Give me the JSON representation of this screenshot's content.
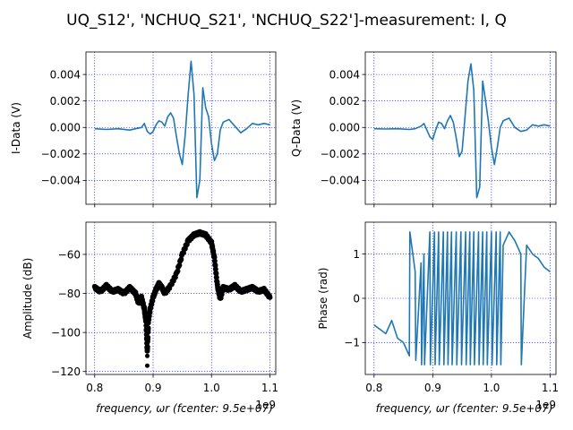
{
  "chart_data": [
    {
      "id": "i-data",
      "type": "line",
      "title": "",
      "xlabel": "",
      "ylabel": "I-Data (V)",
      "xlim": [
        0.785,
        1.11
      ],
      "ylim": [
        -0.0058,
        0.0057
      ],
      "xticks": [
        0.8,
        0.9,
        1.0,
        1.1
      ],
      "yticks": [
        -0.004,
        -0.002,
        0.0,
        0.002,
        0.004
      ],
      "ytick_labels": [
        "−0.004",
        "−0.002",
        "0.000",
        "0.002",
        "0.004"
      ],
      "series": [
        {
          "name": "I",
          "color": "#1f77b4",
          "x": [
            0.8,
            0.82,
            0.84,
            0.86,
            0.87,
            0.88,
            0.885,
            0.89,
            0.895,
            0.9,
            0.905,
            0.91,
            0.915,
            0.92,
            0.925,
            0.93,
            0.935,
            0.94,
            0.945,
            0.95,
            0.955,
            0.96,
            0.965,
            0.97,
            0.975,
            0.98,
            0.985,
            0.99,
            0.995,
            1.0,
            1.005,
            1.01,
            1.015,
            1.02,
            1.03,
            1.04,
            1.05,
            1.06,
            1.07,
            1.08,
            1.09,
            1.1
          ],
          "values": [
            -0.0001,
            -0.00015,
            -0.0001,
            -0.0002,
            -0.0001,
            0.0,
            0.0003,
            -0.0003,
            -0.0005,
            -0.0003,
            0.0002,
            0.0005,
            0.0004,
            0.0001,
            0.0008,
            0.0011,
            0.0007,
            -0.0007,
            -0.002,
            -0.0028,
            -0.0005,
            0.0025,
            0.005,
            0.0025,
            -0.0053,
            -0.004,
            0.003,
            0.0015,
            0.0008,
            -0.0012,
            -0.0025,
            -0.002,
            -0.0002,
            0.0004,
            0.0006,
            0.0001,
            -0.0004,
            -0.0001,
            0.0003,
            0.0002,
            0.0003,
            0.0002
          ]
        }
      ]
    },
    {
      "id": "q-data",
      "type": "line",
      "title": "",
      "xlabel": "",
      "ylabel": "Q-Data (V)",
      "xlim": [
        0.785,
        1.11
      ],
      "ylim": [
        -0.0058,
        0.0057
      ],
      "xticks": [
        0.8,
        0.9,
        1.0,
        1.1
      ],
      "yticks": [
        -0.004,
        -0.002,
        0.0,
        0.002,
        0.004
      ],
      "ytick_labels": [
        "−0.004",
        "−0.002",
        "0.000",
        "0.002",
        "0.004"
      ],
      "series": [
        {
          "name": "Q",
          "color": "#1f77b4",
          "x": [
            0.8,
            0.82,
            0.84,
            0.86,
            0.87,
            0.88,
            0.885,
            0.89,
            0.895,
            0.9,
            0.905,
            0.91,
            0.915,
            0.92,
            0.925,
            0.93,
            0.935,
            0.94,
            0.945,
            0.95,
            0.955,
            0.96,
            0.965,
            0.97,
            0.975,
            0.98,
            0.985,
            0.99,
            0.995,
            1.0,
            1.005,
            1.01,
            1.015,
            1.02,
            1.03,
            1.04,
            1.05,
            1.06,
            1.07,
            1.08,
            1.09,
            1.1
          ],
          "values": [
            -0.0001,
            -0.00012,
            -0.0001,
            -0.00015,
            -0.0001,
            0.0001,
            0.0003,
            -0.0002,
            -0.0007,
            -0.0009,
            -0.0002,
            0.0004,
            0.0003,
            -0.0001,
            0.0005,
            0.0009,
            0.0004,
            -0.0008,
            -0.0022,
            -0.0018,
            0.0008,
            0.0035,
            0.0048,
            0.0028,
            -0.0053,
            -0.0045,
            0.0035,
            0.002,
            0.0004,
            -0.0015,
            -0.0028,
            -0.0015,
            0.0,
            0.0005,
            0.0007,
            0.0,
            -0.0003,
            -0.0002,
            0.0002,
            0.0001,
            0.0002,
            0.0001
          ]
        }
      ]
    },
    {
      "id": "amplitude",
      "type": "scatter",
      "title": "",
      "xlabel": "frequency, ωr (fcenter: 9.5e+07)",
      "ylabel": "Amplitude (dB)",
      "xlim": [
        0.785,
        1.11
      ],
      "ylim": [
        -121.5,
        -43.5
      ],
      "xticks": [
        0.8,
        0.9,
        1.0,
        1.1
      ],
      "xtick_labels": [
        "0.8",
        "0.9",
        "1.0",
        "1.1"
      ],
      "yticks": [
        -120,
        -100,
        -80,
        -60
      ],
      "ytick_labels": [
        "−120",
        "−100",
        "−80",
        "−60"
      ],
      "offset_label": "1e9",
      "series": [
        {
          "name": "Amplitude",
          "color": "#000000",
          "x": [
            0.8,
            0.81,
            0.82,
            0.83,
            0.84,
            0.85,
            0.86,
            0.87,
            0.875,
            0.88,
            0.885,
            0.888,
            0.89,
            0.892,
            0.895,
            0.9,
            0.905,
            0.91,
            0.915,
            0.92,
            0.93,
            0.94,
            0.95,
            0.96,
            0.97,
            0.98,
            0.99,
            1.0,
            1.005,
            1.01,
            1.015,
            1.02,
            1.03,
            1.04,
            1.05,
            1.06,
            1.07,
            1.08,
            1.09,
            1.1
          ],
          "values": [
            -77,
            -79,
            -76,
            -79,
            -78,
            -80,
            -77,
            -80,
            -85,
            -82,
            -88,
            -95,
            -110,
            -94,
            -88,
            -82,
            -78,
            -75,
            -77,
            -80,
            -76,
            -70,
            -60,
            -53,
            -50,
            -49,
            -50,
            -54,
            -62,
            -76,
            -83,
            -77,
            -78,
            -76,
            -79,
            -78,
            -77,
            -79,
            -78,
            -82
          ]
        }
      ]
    },
    {
      "id": "phase",
      "type": "line",
      "title": "",
      "xlabel": "frequency, ωr (fcenter: 9.5e+07)",
      "ylabel": "Phase (rad)",
      "xlim": [
        0.785,
        1.11
      ],
      "ylim": [
        -1.72,
        1.72
      ],
      "xticks": [
        0.8,
        0.9,
        1.0,
        1.1
      ],
      "xtick_labels": [
        "0.8",
        "0.9",
        "1.0",
        "1.1"
      ],
      "yticks": [
        -1,
        0,
        1
      ],
      "ytick_labels": [
        "−1",
        "0",
        "1"
      ],
      "offset_label": "1e9",
      "series": [
        {
          "name": "Phase",
          "color": "#1f77b4",
          "x": [
            0.8,
            0.81,
            0.82,
            0.83,
            0.84,
            0.85,
            0.86,
            0.861,
            0.87,
            0.871,
            0.88,
            0.881,
            0.885,
            0.886,
            0.895,
            0.896,
            0.903,
            0.904,
            0.91,
            0.911,
            0.918,
            0.919,
            0.925,
            0.926,
            0.932,
            0.933,
            0.94,
            0.941,
            0.948,
            0.949,
            0.956,
            0.957,
            0.963,
            0.964,
            0.97,
            0.971,
            0.978,
            0.979,
            0.985,
            0.986,
            0.992,
            0.993,
            1.0,
            1.001,
            1.008,
            1.009,
            1.015,
            1.016,
            1.02,
            1.03,
            1.04,
            1.05,
            1.051,
            1.06,
            1.07,
            1.08,
            1.09,
            1.1
          ],
          "values": [
            -0.6,
            -0.7,
            -0.8,
            -0.5,
            -0.9,
            -1.0,
            -1.3,
            1.5,
            0.6,
            -1.4,
            0.8,
            -1.5,
            1.0,
            -1.5,
            1.5,
            -1.5,
            1.5,
            -1.5,
            1.5,
            -1.5,
            1.5,
            -1.5,
            1.5,
            -1.5,
            1.5,
            -1.5,
            1.5,
            -1.5,
            1.5,
            -1.5,
            1.5,
            -1.5,
            1.5,
            -1.5,
            1.5,
            -1.5,
            1.5,
            -1.5,
            1.5,
            -1.5,
            1.5,
            -1.5,
            1.5,
            -1.5,
            1.5,
            -1.5,
            1.5,
            -1.5,
            1.2,
            1.5,
            1.3,
            1.0,
            -1.5,
            1.2,
            1.0,
            0.9,
            0.7,
            0.6
          ]
        }
      ]
    }
  ],
  "figure": {
    "title": "UQ_S12', 'NCHUQ_S21', 'NCHUQ_S22']-measurement: I, Q"
  }
}
